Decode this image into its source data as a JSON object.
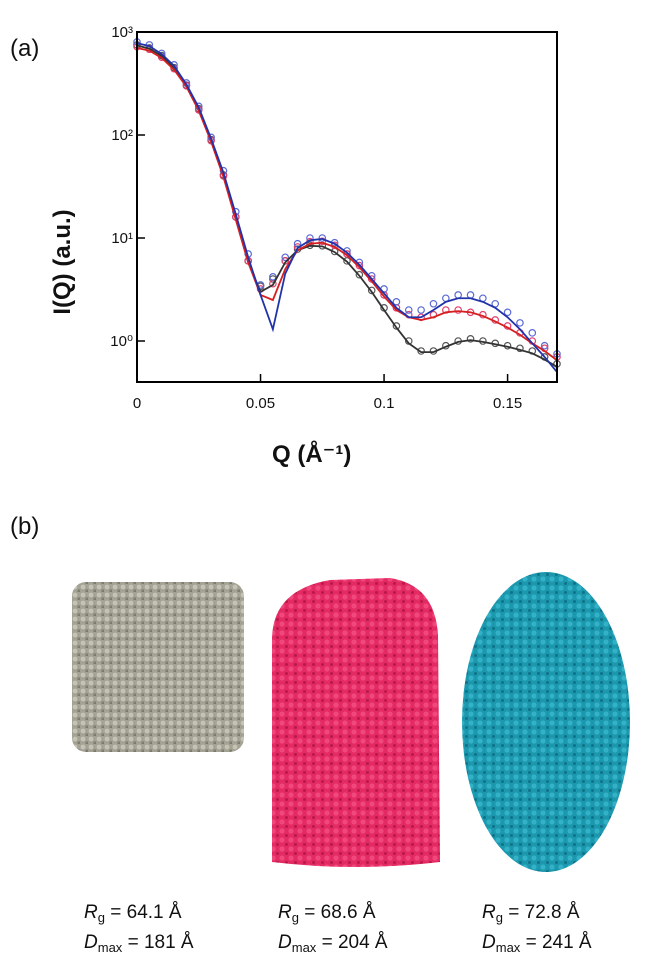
{
  "chart_data": {
    "type": "line",
    "yscale": "log",
    "xlabel": "Q (Å⁻¹)",
    "ylabel": "I(Q) (a.u.)",
    "xlim": [
      0,
      0.17
    ],
    "xticks": [
      0,
      0.05,
      0.1,
      0.15
    ],
    "ylim": [
      0.4,
      1000
    ],
    "yticks": [
      {
        "value": 1,
        "label": "10⁰"
      },
      {
        "value": 10,
        "label": "10¹"
      },
      {
        "value": 100,
        "label": "10²"
      },
      {
        "value": 1000,
        "label": "10³"
      }
    ],
    "x": [
      0,
      0.005,
      0.01,
      0.015,
      0.02,
      0.025,
      0.03,
      0.035,
      0.04,
      0.045,
      0.05,
      0.055,
      0.06,
      0.065,
      0.07,
      0.075,
      0.08,
      0.085,
      0.09,
      0.095,
      0.1,
      0.105,
      0.11,
      0.115,
      0.12,
      0.125,
      0.13,
      0.135,
      0.14,
      0.145,
      0.15,
      0.155,
      0.16,
      0.165,
      0.17
    ],
    "series": [
      {
        "style": "markers",
        "color": "#555555",
        "values": [
          750,
          700,
          590,
          450,
          305,
          180,
          90,
          41,
          16,
          6,
          3.4,
          4,
          6,
          7.8,
          8.5,
          8.4,
          7.4,
          6,
          4.4,
          3.1,
          2.1,
          1.4,
          1.0,
          0.8,
          0.8,
          0.9,
          1.0,
          1.05,
          1.0,
          0.95,
          0.9,
          0.85,
          0.8,
          0.7,
          0.6
        ]
      },
      {
        "style": "markers",
        "color": "#e0406e",
        "values": [
          720,
          680,
          570,
          440,
          300,
          175,
          88,
          40,
          16,
          6,
          3.2,
          3.6,
          6,
          8.2,
          9.2,
          9.3,
          8.5,
          7,
          5.4,
          4,
          2.8,
          2.1,
          1.8,
          1.7,
          1.8,
          2.0,
          2.0,
          1.9,
          1.8,
          1.6,
          1.4,
          1.2,
          1.0,
          0.85,
          0.7
        ]
      },
      {
        "style": "markers",
        "color": "#5a6ad6",
        "values": [
          800,
          750,
          620,
          480,
          320,
          190,
          95,
          45,
          18,
          7,
          3.5,
          4.2,
          6.5,
          8.8,
          10,
          10,
          9,
          7.5,
          5.8,
          4.3,
          3.2,
          2.4,
          2.0,
          2.0,
          2.3,
          2.6,
          2.8,
          2.8,
          2.6,
          2.3,
          1.9,
          1.5,
          1.2,
          0.9,
          0.75
        ]
      },
      {
        "style": "line",
        "color": "#333333",
        "values": [
          740,
          690,
          585,
          445,
          300,
          178,
          89,
          40,
          15.5,
          5.8,
          3.0,
          3.5,
          5.8,
          7.6,
          8.4,
          8.3,
          7.3,
          5.9,
          4.3,
          3.0,
          2.0,
          1.35,
          0.95,
          0.78,
          0.78,
          0.88,
          0.98,
          1.02,
          0.98,
          0.93,
          0.88,
          0.82,
          0.76,
          0.66,
          0.56
        ]
      },
      {
        "style": "line",
        "color": "#d62020",
        "values": [
          700,
          660,
          560,
          430,
          295,
          172,
          86,
          39,
          15,
          5.8,
          2.8,
          2.5,
          5,
          7.6,
          8.8,
          9,
          8.2,
          6.8,
          5.2,
          3.8,
          2.7,
          2.0,
          1.7,
          1.6,
          1.7,
          1.9,
          1.95,
          1.9,
          1.75,
          1.55,
          1.35,
          1.15,
          0.95,
          0.8,
          0.65
        ]
      },
      {
        "style": "line",
        "color": "#2233aa",
        "values": [
          780,
          730,
          610,
          470,
          310,
          185,
          92,
          43,
          17,
          6.5,
          2.8,
          1.3,
          4.5,
          8,
          9.5,
          9.8,
          8.8,
          7.2,
          5.5,
          4,
          2.9,
          2.1,
          1.7,
          1.7,
          2.0,
          2.4,
          2.6,
          2.6,
          2.4,
          2.1,
          1.7,
          1.3,
          0.95,
          0.7,
          0.5
        ]
      }
    ]
  },
  "panel_a": "(a)",
  "panel_b": "(b)",
  "rg_symbol": {
    "main": "R",
    "sub": "g"
  },
  "dmax_symbol": {
    "main": "D",
    "sub": "max"
  },
  "models": [
    {
      "rg": " = 64.1 Å",
      "dmax": " = 181 Å"
    },
    {
      "rg": " = 68.6 Å",
      "dmax": " = 204 Å"
    },
    {
      "rg": " = 72.8 Å",
      "dmax": " = 241 Å"
    }
  ]
}
